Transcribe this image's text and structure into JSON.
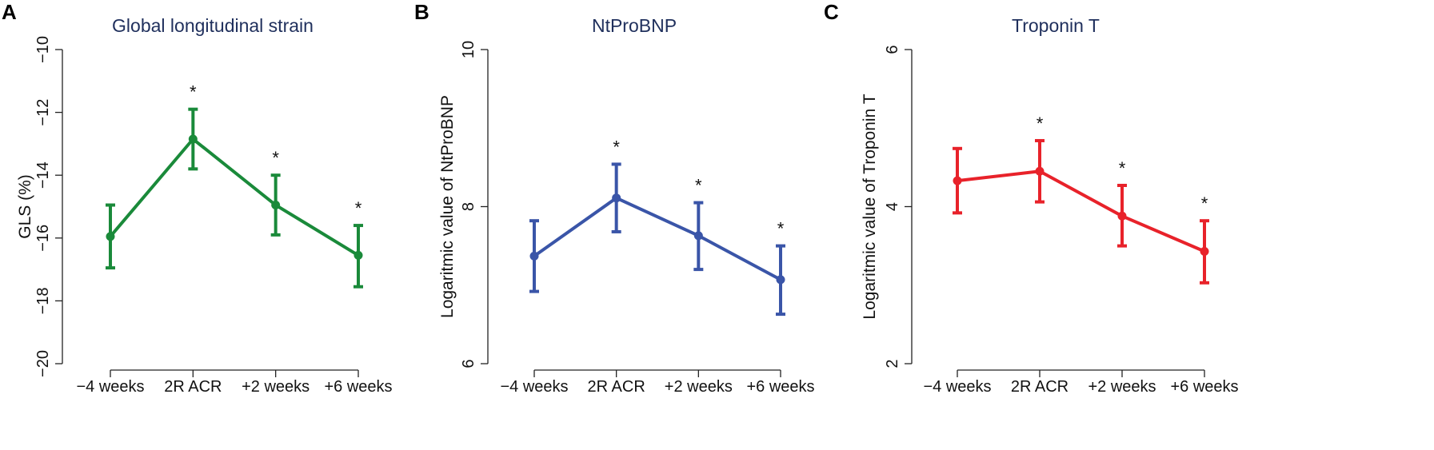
{
  "chart_data": [
    {
      "type": "line",
      "panel_label": "A",
      "title": "Global longitudinal strain",
      "xlabel": "",
      "ylabel": "GLS (%)",
      "categories": [
        "−4 weeks",
        "2R ACR",
        "+2 weeks",
        "+6 weeks"
      ],
      "ylim": [
        -20,
        -10
      ],
      "yticks": [
        -20,
        -18,
        -16,
        -14,
        -12,
        -10
      ],
      "ytick_labels": [
        "−20",
        "−18",
        "−16",
        "−14",
        "−12",
        "−10"
      ],
      "color": "#1a8a3a",
      "series": [
        {
          "name": "GLS",
          "values": [
            -15.95,
            -12.85,
            -14.95,
            -16.55
          ],
          "error_low": [
            -16.95,
            -13.8,
            -15.9,
            -17.55
          ],
          "error_high": [
            -14.95,
            -11.9,
            -14.0,
            -15.6
          ],
          "significance": [
            "",
            "*",
            "*",
            "*"
          ]
        }
      ]
    },
    {
      "type": "line",
      "panel_label": "B",
      "title": "NtProBNP",
      "xlabel": "",
      "ylabel": "Logaritmic value of NtProBNP",
      "categories": [
        "−4 weeks",
        "2R ACR",
        "+2 weeks",
        "+6 weeks"
      ],
      "ylim": [
        6,
        10
      ],
      "yticks": [
        6,
        8,
        10
      ],
      "ytick_labels": [
        "6",
        "8",
        "10"
      ],
      "color": "#3a55a8",
      "series": [
        {
          "name": "NtProBNP",
          "values": [
            7.37,
            8.11,
            7.63,
            7.07
          ],
          "error_low": [
            6.92,
            7.68,
            7.2,
            6.63
          ],
          "error_high": [
            7.82,
            8.54,
            8.05,
            7.5
          ],
          "significance": [
            "",
            "*",
            "*",
            "*"
          ]
        }
      ]
    },
    {
      "type": "line",
      "panel_label": "C",
      "title": "Troponin T",
      "xlabel": "",
      "ylabel": "Logaritmic value of Troponin T",
      "categories": [
        "−4 weeks",
        "2R ACR",
        "+2 weeks",
        "+6 weeks"
      ],
      "ylim": [
        2,
        6
      ],
      "yticks": [
        2,
        4,
        6
      ],
      "ytick_labels": [
        "2",
        "4",
        "6"
      ],
      "color": "#e8222a",
      "series": [
        {
          "name": "Troponin T",
          "values": [
            4.33,
            4.45,
            3.88,
            3.43
          ],
          "error_low": [
            3.92,
            4.06,
            3.5,
            3.03
          ],
          "error_high": [
            4.74,
            4.84,
            4.27,
            3.82
          ],
          "significance": [
            "",
            "*",
            "*",
            "*"
          ]
        }
      ]
    }
  ]
}
